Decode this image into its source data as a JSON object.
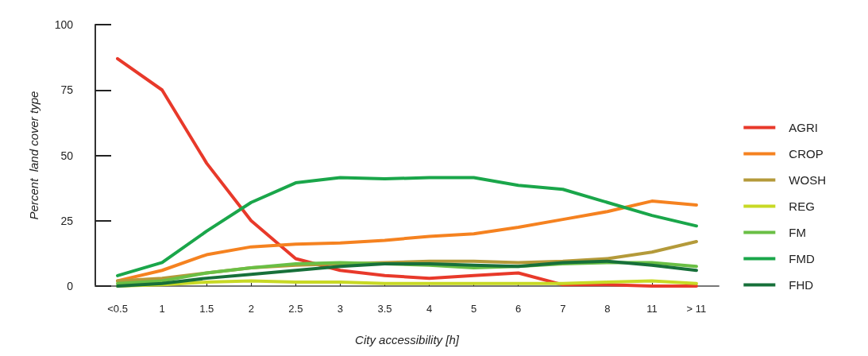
{
  "chart_data": {
    "type": "line",
    "xlabel": "City accessibility [h]",
    "ylabel": "Percent  land cover type",
    "categories": [
      "<0.5",
      "1",
      "1.5",
      "2",
      "2.5",
      "3",
      "3.5",
      "4",
      "5",
      "6",
      "7",
      "8",
      "11",
      "> 11"
    ],
    "series": [
      {
        "name": "AGRI",
        "color": "#e8392a",
        "values": [
          87,
          75,
          47,
          25,
          10.5,
          6,
          4,
          3,
          4,
          5,
          0.5,
          0.5,
          0,
          0
        ]
      },
      {
        "name": "CROP",
        "color": "#f58220",
        "values": [
          2,
          6,
          12,
          15,
          16,
          16.5,
          17.5,
          19,
          20,
          22.5,
          25.5,
          28.5,
          32.5,
          31
        ]
      },
      {
        "name": "WOSH",
        "color": "#b49a3a",
        "values": [
          2,
          3,
          5,
          7,
          8,
          8.5,
          9,
          9.5,
          9.5,
          9,
          9.5,
          10.5,
          13,
          17
        ]
      },
      {
        "name": "REG",
        "color": "#c8d925",
        "values": [
          0,
          0.5,
          1.5,
          2,
          1.5,
          1.5,
          1,
          1,
          1,
          1,
          1,
          1.5,
          2,
          1
        ]
      },
      {
        "name": "FM",
        "color": "#6abf45",
        "values": [
          1,
          2,
          5,
          7,
          8.5,
          9,
          8.5,
          8,
          7,
          7.5,
          8.5,
          9,
          9,
          7.5
        ]
      },
      {
        "name": "FMD",
        "color": "#1aa64a",
        "values": [
          4,
          9,
          21,
          32,
          39.5,
          41.5,
          41,
          41.5,
          41.5,
          38.5,
          37,
          32,
          27,
          23
        ]
      },
      {
        "name": "FHD",
        "color": "#17703a",
        "values": [
          0,
          1,
          3,
          4.5,
          6,
          7.5,
          8.5,
          8.5,
          8,
          7.5,
          9,
          9.5,
          8,
          6
        ]
      }
    ],
    "ylim": [
      0,
      100
    ],
    "yticks": [
      0,
      25,
      50,
      75,
      100
    ],
    "grid": false,
    "legend": "right",
    "marker": "none",
    "line_style": "solid"
  }
}
